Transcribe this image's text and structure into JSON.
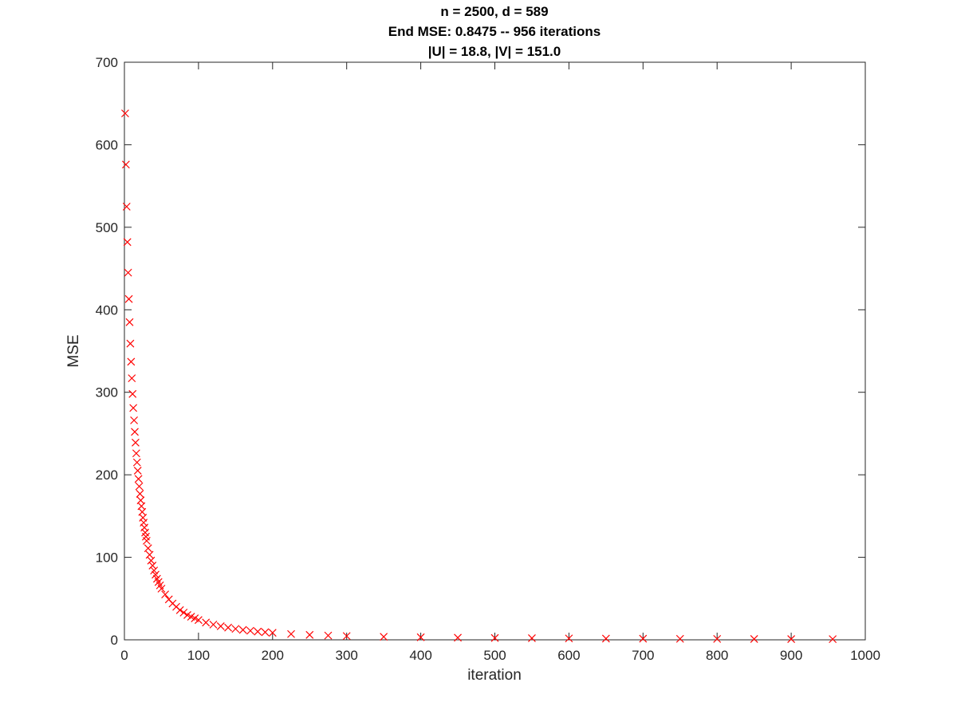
{
  "chart_data": {
    "type": "scatter",
    "title_lines": [
      "n = 2500, d = 589",
      "End MSE: 0.8475 -- 956 iterations",
      "|U| = 18.8, |V| = 151.0"
    ],
    "xlabel": "iteration",
    "ylabel": "MSE",
    "xlim": [
      0,
      1000
    ],
    "ylim": [
      0,
      700
    ],
    "x_ticks": [
      "0",
      "100",
      "200",
      "300",
      "400",
      "500",
      "600",
      "700",
      "800",
      "900",
      "1000"
    ],
    "y_ticks": [
      "0",
      "100",
      "200",
      "300",
      "400",
      "500",
      "600",
      "700"
    ],
    "grid": false,
    "marker": "x",
    "marker_color": "#ff0000",
    "series": [
      {
        "x": [
          1,
          2,
          3,
          4,
          5,
          6,
          7,
          8,
          9,
          10,
          11,
          12,
          13,
          14,
          15,
          16,
          17,
          18,
          19,
          20,
          21,
          22,
          23,
          24,
          25,
          26,
          27,
          28,
          29,
          30,
          32,
          34,
          36,
          38,
          40,
          42,
          44,
          46,
          48,
          50,
          55,
          60,
          65,
          70,
          75,
          80,
          85,
          90,
          95,
          100,
          110,
          120,
          130,
          140,
          150,
          160,
          170,
          180,
          190,
          200,
          225,
          250,
          275,
          300,
          350,
          400,
          450,
          500,
          550,
          600,
          650,
          700,
          750,
          800,
          850,
          900,
          956
        ],
        "y": [
          638,
          576,
          525,
          482,
          445,
          413,
          385,
          359,
          337,
          317,
          298,
          281,
          266,
          252,
          239,
          226,
          215,
          205,
          195,
          186,
          177,
          169,
          162,
          155,
          148,
          142,
          136,
          130,
          125,
          120,
          111,
          103,
          96,
          90,
          84,
          79,
          74,
          70,
          66,
          62,
          55,
          49,
          44,
          40,
          36,
          33,
          30,
          28,
          26,
          24,
          21,
          18.5,
          16.5,
          14.8,
          13.3,
          12,
          11,
          10,
          9.2,
          8.5,
          7,
          6,
          5.2,
          4.6,
          3.7,
          3.1,
          2.6,
          2.25,
          1.95,
          1.7,
          1.5,
          1.35,
          1.2,
          1.08,
          0.98,
          0.92,
          0.8475
        ]
      }
    ]
  }
}
